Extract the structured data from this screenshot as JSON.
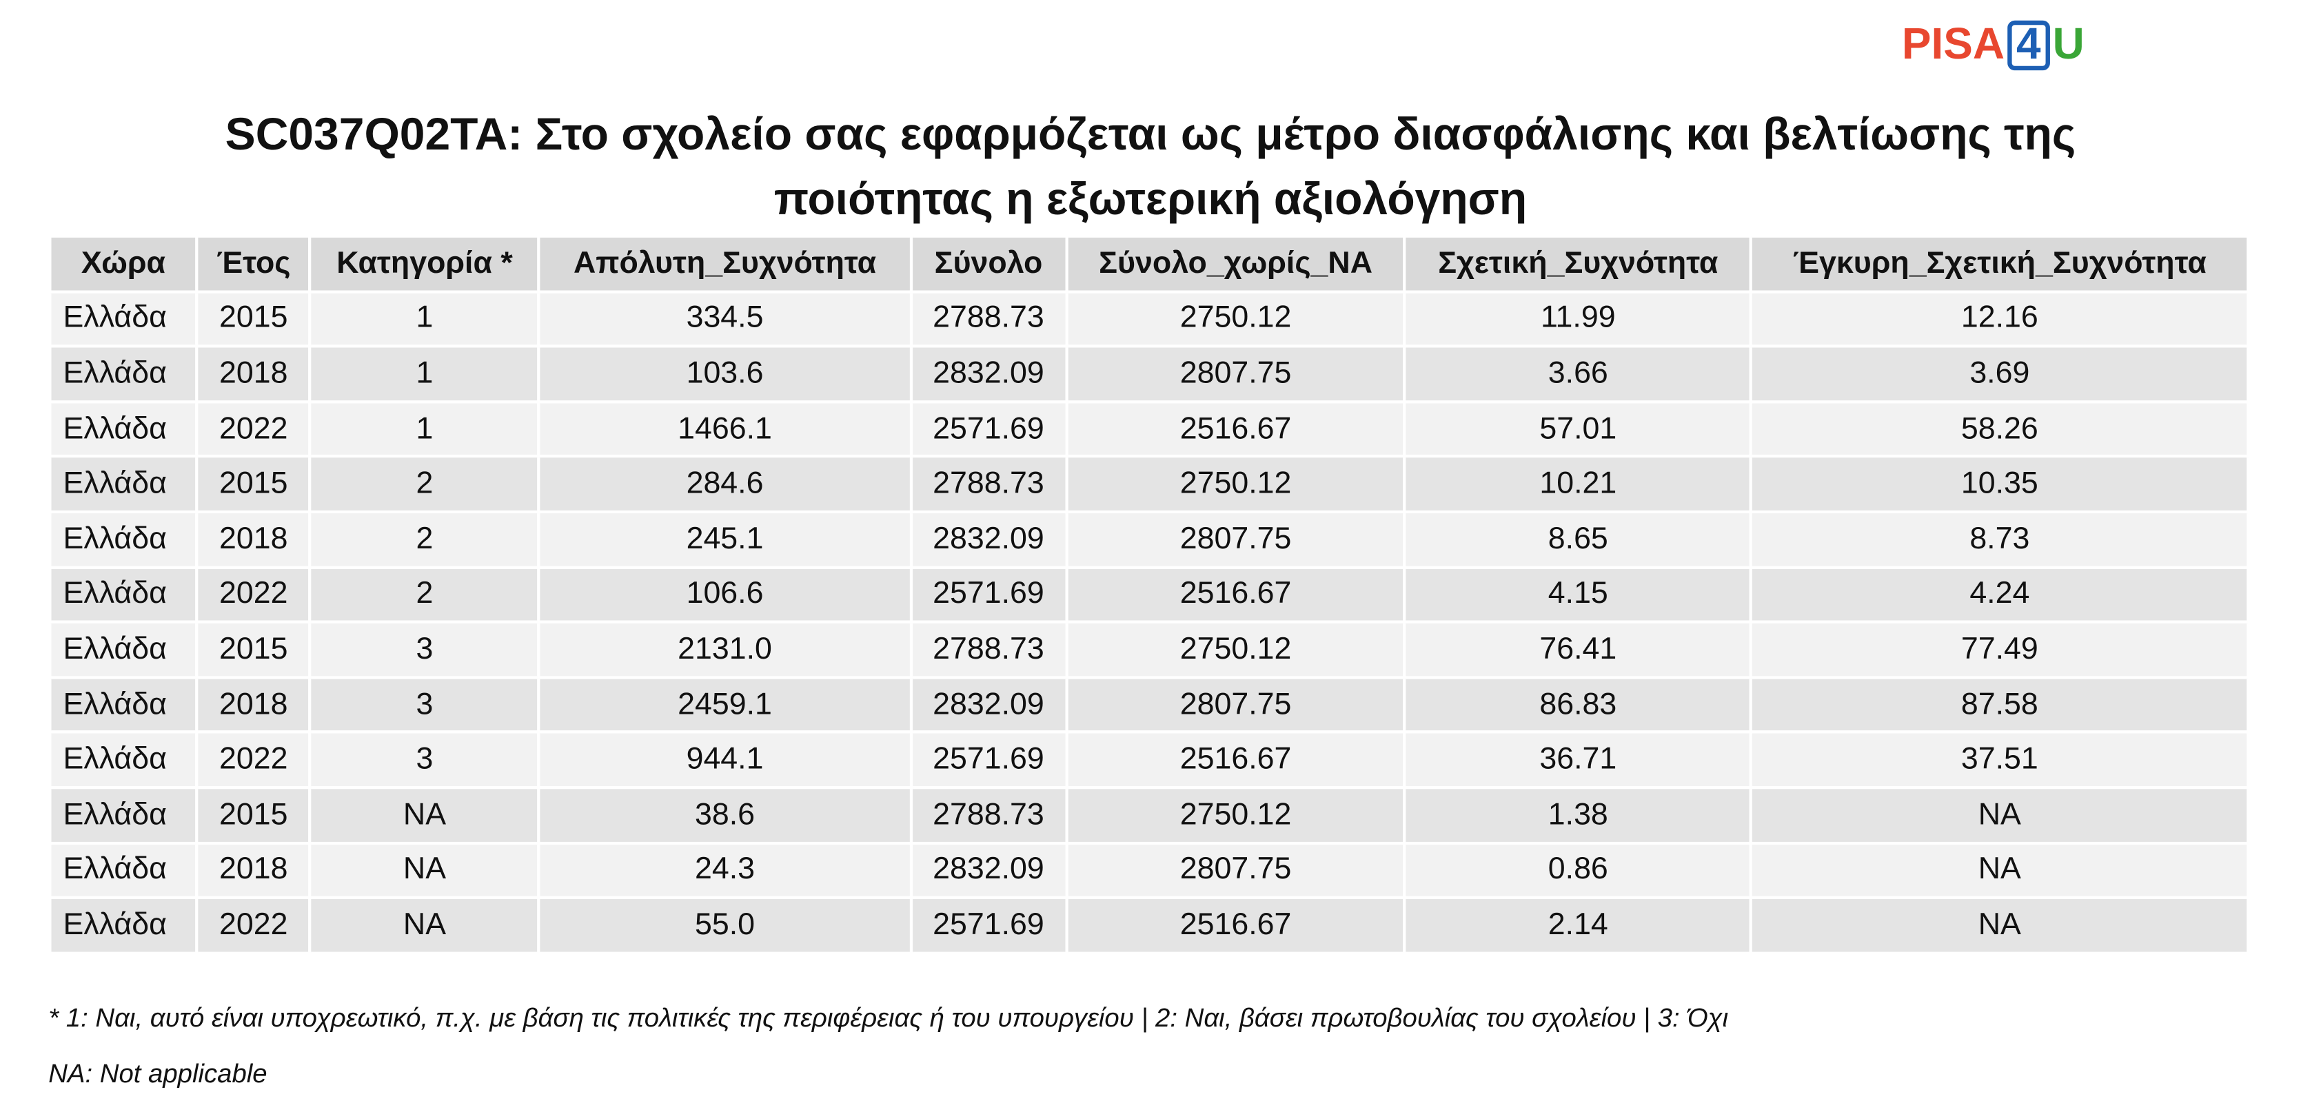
{
  "logo": {
    "parts": [
      "PISA",
      "4",
      "U"
    ]
  },
  "title": "SC037Q02TA: Στο σχολείο σας εφαρμόζεται ως μέτρο διασφάλισης και βελτίωσης της ποιότητας η εξωτερική αξιολόγηση",
  "table": {
    "columns": [
      "Χώρα",
      "Έτος",
      "Κατηγορία *",
      "Απόλυτη_Συχνότητα",
      "Σύνολο",
      "Σύνολο_χωρίς_NA",
      "Σχετική_Συχνότητα",
      "Έγκυρη_Σχετική_Συχνότητα"
    ],
    "rows": [
      [
        "Ελλάδα",
        "2015",
        "1",
        "334.5",
        "2788.73",
        "2750.12",
        "11.99",
        "12.16"
      ],
      [
        "Ελλάδα",
        "2018",
        "1",
        "103.6",
        "2832.09",
        "2807.75",
        "3.66",
        "3.69"
      ],
      [
        "Ελλάδα",
        "2022",
        "1",
        "1466.1",
        "2571.69",
        "2516.67",
        "57.01",
        "58.26"
      ],
      [
        "Ελλάδα",
        "2015",
        "2",
        "284.6",
        "2788.73",
        "2750.12",
        "10.21",
        "10.35"
      ],
      [
        "Ελλάδα",
        "2018",
        "2",
        "245.1",
        "2832.09",
        "2807.75",
        "8.65",
        "8.73"
      ],
      [
        "Ελλάδα",
        "2022",
        "2",
        "106.6",
        "2571.69",
        "2516.67",
        "4.15",
        "4.24"
      ],
      [
        "Ελλάδα",
        "2015",
        "3",
        "2131.0",
        "2788.73",
        "2750.12",
        "76.41",
        "77.49"
      ],
      [
        "Ελλάδα",
        "2018",
        "3",
        "2459.1",
        "2832.09",
        "2807.75",
        "86.83",
        "87.58"
      ],
      [
        "Ελλάδα",
        "2022",
        "3",
        "944.1",
        "2571.69",
        "2516.67",
        "36.71",
        "37.51"
      ],
      [
        "Ελλάδα",
        "2015",
        "NA",
        "38.6",
        "2788.73",
        "2750.12",
        "1.38",
        "NA"
      ],
      [
        "Ελλάδα",
        "2018",
        "NA",
        "24.3",
        "2832.09",
        "2807.75",
        "0.86",
        "NA"
      ],
      [
        "Ελλάδα",
        "2022",
        "NA",
        "55.0",
        "2571.69",
        "2516.67",
        "2.14",
        "NA"
      ]
    ]
  },
  "footnotes": [
    "* 1: Ναι, αυτό είναι υποχρεωτικό, π.χ. με βάση τις πολιτικές της περιφέρειας ή του υπουργείου | 2: Ναι, βάσει πρωτοβουλίας του σχολείου | 3: Όχι",
    "NA: Not applicable"
  ]
}
